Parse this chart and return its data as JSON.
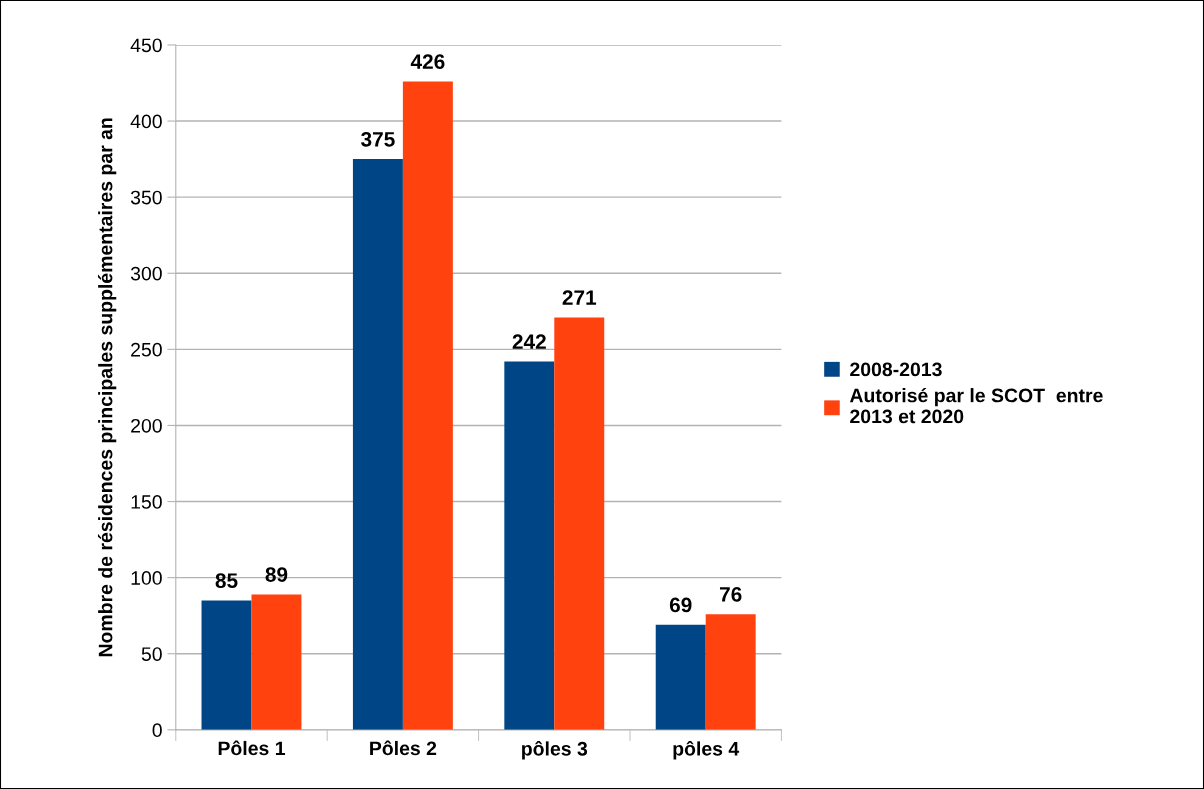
{
  "chart_data": {
    "type": "bar",
    "ylabel": "Nombre de résidences principales supplémentaires par an",
    "categories": [
      "Pôles 1",
      "Pôles 2",
      "pôles 3",
      "pôles 4"
    ],
    "series": [
      {
        "name": "2008-2013",
        "color": "#004586",
        "values": [
          85,
          375,
          242,
          69
        ]
      },
      {
        "name": "Autorisé par le SCOT  entre\n2013 et 2020",
        "color": "#ff420e",
        "values": [
          89,
          426,
          271,
          76
        ]
      }
    ],
    "ylim": [
      0,
      450
    ],
    "yticks": [
      0,
      50,
      100,
      150,
      200,
      250,
      300,
      350,
      400,
      450
    ],
    "grid": "y",
    "legend": "right",
    "data_labels": true
  }
}
